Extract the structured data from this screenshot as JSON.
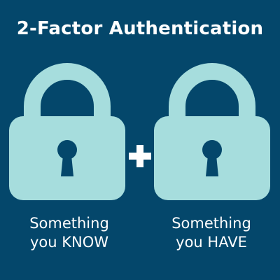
{
  "title": "2-Factor Authentication",
  "colors": {
    "background": "#04476b",
    "lock": "#a6dddd",
    "keyhole": "#04476b",
    "text": "#ffffff"
  },
  "factors": [
    {
      "icon": "padlock-icon",
      "line1": "Something",
      "line2": "you KNOW"
    },
    {
      "icon": "padlock-icon",
      "line1": "Something",
      "line2": "you HAVE"
    }
  ],
  "connector_icon": "plus-icon"
}
